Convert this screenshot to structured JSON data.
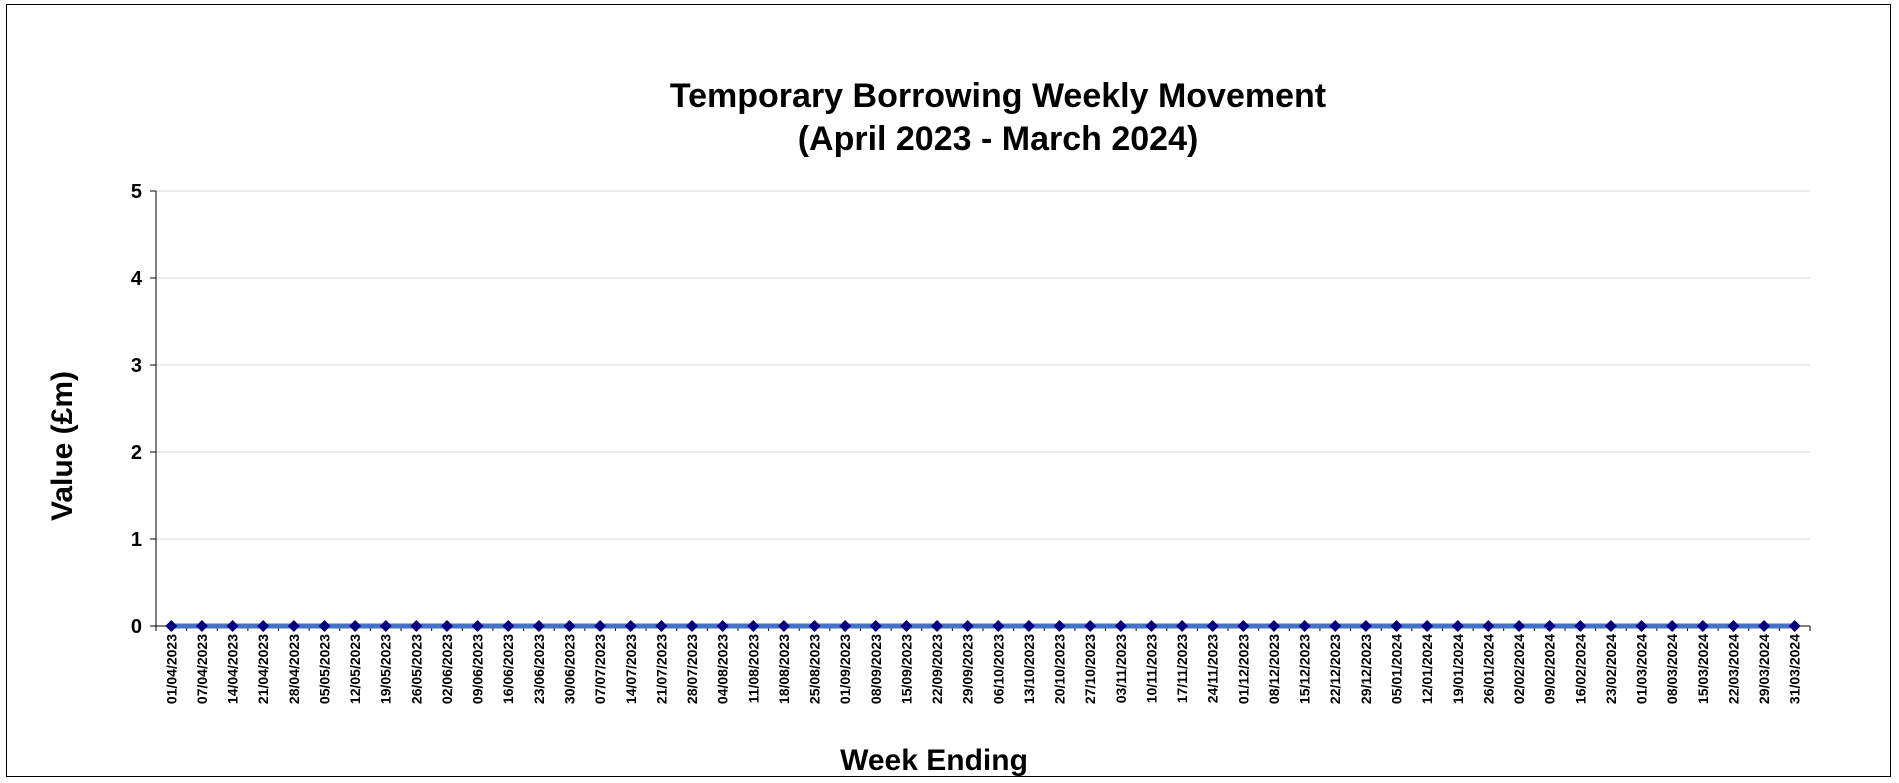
{
  "chart_data": {
    "type": "line",
    "title_line1": "Temporary Borrowing Weekly Movement",
    "title_line2": "(April 2023 - March 2024)",
    "xlabel": "Week Ending",
    "ylabel": "Value (£m)",
    "ylim": [
      0,
      5
    ],
    "yticks": [
      "0",
      "1",
      "2",
      "3",
      "4",
      "5"
    ],
    "grid": true,
    "legend": "none",
    "line_color": "#4472C4",
    "marker_color": "#000080",
    "categories": [
      "01/04/2023",
      "07/04/2023",
      "14/04/2023",
      "21/04/2023",
      "28/04/2023",
      "05/05/2023",
      "12/05/2023",
      "19/05/2023",
      "26/05/2023",
      "02/06/2023",
      "09/06/2023",
      "16/06/2023",
      "23/06/2023",
      "30/06/2023",
      "07/07/2023",
      "14/07/2023",
      "21/07/2023",
      "28/07/2023",
      "04/08/2023",
      "11/08/2023",
      "18/08/2023",
      "25/08/2023",
      "01/09/2023",
      "08/09/2023",
      "15/09/2023",
      "22/09/2023",
      "29/09/2023",
      "06/10/2023",
      "13/10/2023",
      "20/10/2023",
      "27/10/2023",
      "03/11/2023",
      "10/11/2023",
      "17/11/2023",
      "24/11/2023",
      "01/12/2023",
      "08/12/2023",
      "15/12/2023",
      "22/12/2023",
      "29/12/2023",
      "05/01/2024",
      "12/01/2024",
      "19/01/2024",
      "26/01/2024",
      "02/02/2024",
      "09/02/2024",
      "16/02/2024",
      "23/02/2024",
      "01/03/2024",
      "08/03/2024",
      "15/03/2024",
      "22/03/2024",
      "29/03/2024",
      "31/03/2024"
    ],
    "series": [
      {
        "values": [
          0,
          0,
          0,
          0,
          0,
          0,
          0,
          0,
          0,
          0,
          0,
          0,
          0,
          0,
          0,
          0,
          0,
          0,
          0,
          0,
          0,
          0,
          0,
          0,
          0,
          0,
          0,
          0,
          0,
          0,
          0,
          0,
          0,
          0,
          0,
          0,
          0,
          0,
          0,
          0,
          0,
          0,
          0,
          0,
          0,
          0,
          0,
          0,
          0,
          0,
          0,
          0,
          0,
          0
        ]
      }
    ]
  }
}
